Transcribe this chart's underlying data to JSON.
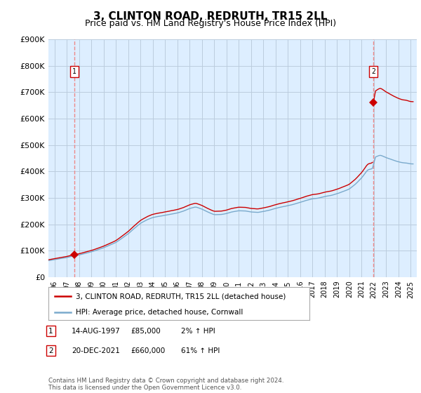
{
  "title": "3, CLINTON ROAD, REDRUTH, TR15 2LL",
  "subtitle": "Price paid vs. HM Land Registry's House Price Index (HPI)",
  "ylim": [
    0,
    900000
  ],
  "yticks": [
    0,
    100000,
    200000,
    300000,
    400000,
    500000,
    600000,
    700000,
    800000,
    900000
  ],
  "sale1_date": 1997.62,
  "sale1_price": 85000,
  "sale1_label": "1",
  "sale2_date": 2021.97,
  "sale2_price": 660000,
  "sale2_label": "2",
  "hpi_color": "#7aaacc",
  "sale_color": "#cc0000",
  "dashed_color": "#ee8888",
  "legend_entry1": "3, CLINTON ROAD, REDRUTH, TR15 2LL (detached house)",
  "legend_entry2": "HPI: Average price, detached house, Cornwall",
  "table_row1_num": "1",
  "table_row1_date": "14-AUG-1997",
  "table_row1_price": "£85,000",
  "table_row1_hpi": "2% ↑ HPI",
  "table_row2_num": "2",
  "table_row2_date": "20-DEC-2021",
  "table_row2_price": "£660,000",
  "table_row2_hpi": "61% ↑ HPI",
  "footer": "Contains HM Land Registry data © Crown copyright and database right 2024.\nThis data is licensed under the Open Government Licence v3.0.",
  "plot_bg_color": "#ddeeff",
  "fig_bg_color": "#ffffff",
  "grid_color": "#bbccdd",
  "title_fontsize": 11,
  "subtitle_fontsize": 9,
  "xlim_start": 1995.5,
  "xlim_end": 2025.5
}
